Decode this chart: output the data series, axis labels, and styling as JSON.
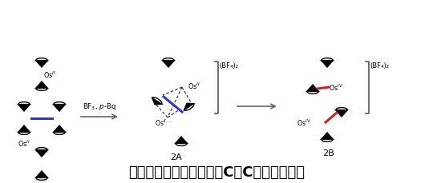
{
  "title": "バイオスモセンの酸化的C－C結合開裂反応",
  "title_fontsize": 13,
  "background_color": "#ffffff",
  "label_2A": "2A",
  "label_2B": "2B",
  "bf4_label": "(BF₄)₂",
  "blue_bond_color": "#3333cc",
  "red_bond_color": "#cc2222",
  "dashed_color": "#444444",
  "arrow_color": "#666666",
  "bracket_color": "#555555",
  "text_color": "#000000",
  "reagent_text": "BF$_3$, $p$-Bq"
}
